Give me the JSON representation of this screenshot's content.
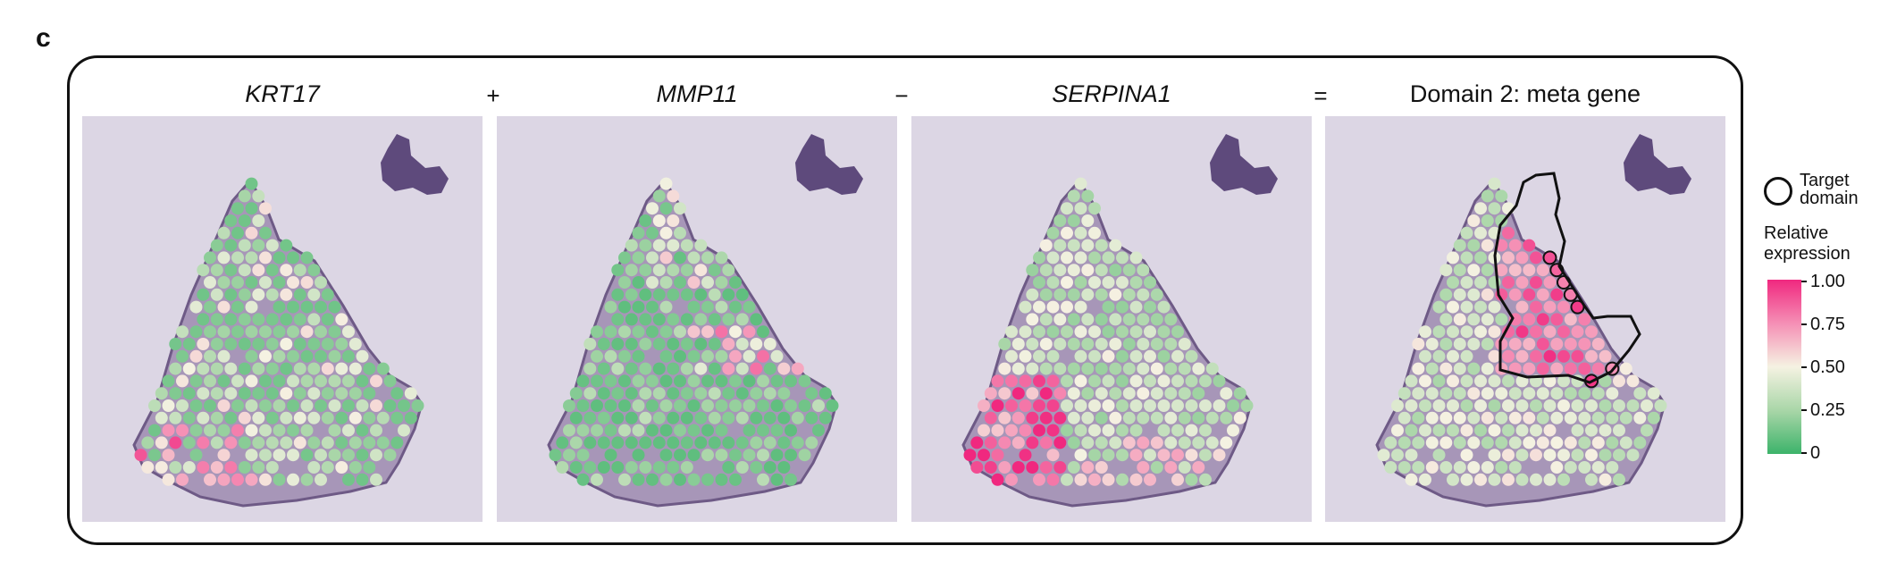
{
  "panel_letter": "c",
  "panels": [
    {
      "title": "KRT17",
      "italic": true
    },
    {
      "title": "MMP11",
      "italic": true
    },
    {
      "title": "SERPINA1",
      "italic": true
    },
    {
      "title": "Domain 2: meta gene",
      "italic": false
    }
  ],
  "operators": [
    "+",
    "−",
    "="
  ],
  "legend": {
    "target_line1": "Target",
    "target_line2": "domain",
    "relative_line1": "Relative",
    "relative_line2": "expression",
    "ticks": [
      "1.00",
      "0.75",
      "0.50",
      "0.25",
      "0"
    ],
    "colors": {
      "high": "#f0287f",
      "mid": "#f5f2e2",
      "low": "#3cb36a"
    }
  }
}
